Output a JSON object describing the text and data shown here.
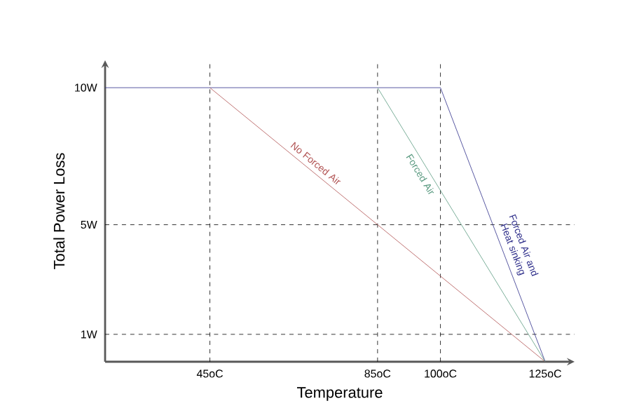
{
  "chart_data": {
    "type": "line",
    "xlabel": "Temperature",
    "ylabel": "Total Power Loss",
    "series": [
      {
        "name": "Forced Air and Heat sinking",
        "color": "#2e2e8a",
        "x": [
          20,
          100,
          125
        ],
        "values": [
          10,
          10,
          0
        ]
      },
      {
        "name": "No Forced Air",
        "color": "#b05050",
        "x": [
          45,
          125
        ],
        "values": [
          10,
          0
        ]
      },
      {
        "name": "Forced Air",
        "color": "#5a9a80",
        "x": [
          85,
          125
        ],
        "values": [
          10,
          0
        ]
      }
    ],
    "xlim": [
      20,
      132
    ],
    "ylim": [
      0,
      11
    ],
    "xticks": [
      {
        "value": 45,
        "label": "45oC"
      },
      {
        "value": 85,
        "label": "85oC"
      },
      {
        "value": 100,
        "label": "100oC"
      },
      {
        "value": 125,
        "label": "125oC"
      }
    ],
    "yticks": [
      {
        "value": 10,
        "label": "10W"
      },
      {
        "value": 5,
        "label": "5W"
      },
      {
        "value": 1,
        "label": "1W"
      }
    ],
    "ref_lines": [
      {
        "axis": "x",
        "value": 45,
        "line_style": "dashed",
        "color": "#000000"
      },
      {
        "axis": "x",
        "value": 85,
        "line_style": "dashed",
        "color": "#000000"
      },
      {
        "axis": "x",
        "value": 100,
        "line_style": "dashed",
        "color": "#000000"
      },
      {
        "axis": "y",
        "value": 5,
        "line_style": "dashed",
        "color": "#000000"
      },
      {
        "axis": "y",
        "value": 1,
        "line_style": "dashed",
        "color": "#000000"
      }
    ],
    "grid": false,
    "marker": "none",
    "line_style": "solid"
  }
}
